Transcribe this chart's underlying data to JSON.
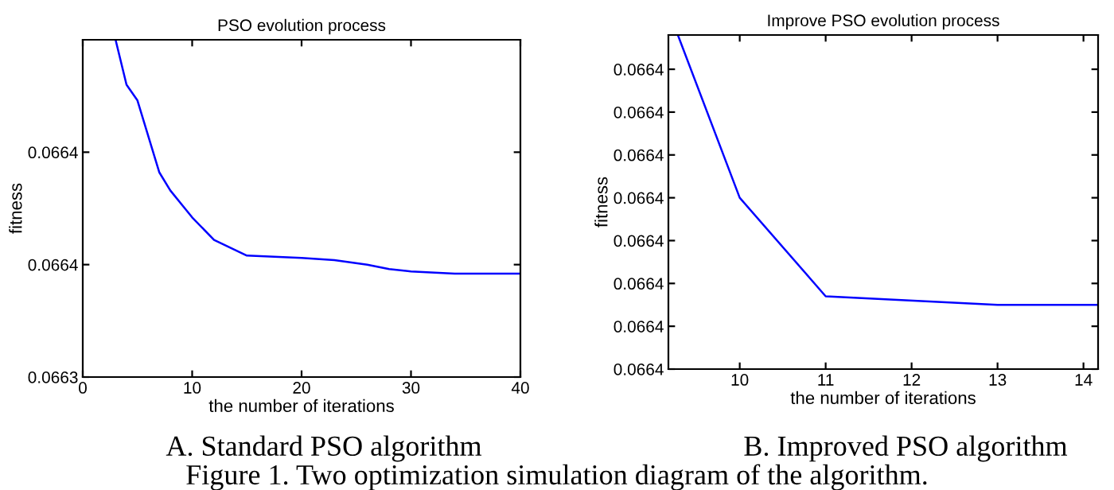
{
  "chart_data": [
    {
      "type": "line",
      "title": "PSO evolution process",
      "xlabel": "the number of iterations",
      "ylabel": "fitness",
      "x": [
        3,
        4,
        5,
        7,
        8,
        10,
        12,
        15,
        20,
        23,
        26,
        28,
        30,
        34,
        40
      ],
      "series": [
        {
          "color": "#0000ff",
          "values": [
            0.06645,
            0.06643,
            0.066423,
            0.066391,
            0.066383,
            0.066371,
            0.066361,
            0.066354,
            0.066353,
            0.066352,
            0.06635,
            0.066348,
            0.066347,
            0.066346,
            0.066346
          ]
        }
      ],
      "xlim": [
        0,
        40
      ],
      "xticks": [
        0,
        10,
        20,
        30,
        40
      ],
      "ylim": [
        0.0663,
        0.06645
      ],
      "yticks": [
        {
          "value": 0.0663,
          "label": "0.0663"
        },
        {
          "value": 0.06635,
          "label": "0.0664"
        },
        {
          "value": 0.0664,
          "label": "0.0664"
        }
      ],
      "grid": false,
      "legend": false,
      "annotations": [
        "A. Standard PSO algorithm",
        "Figure 1. Two optimization simulation diagram of the algorithm."
      ]
    },
    {
      "type": "line",
      "title": "Improve PSO evolution process",
      "xlabel": "the number of iterations",
      "ylabel": "fitness",
      "x": [
        9.28,
        10,
        11,
        13,
        14.17
      ],
      "series": [
        {
          "color": "#0000ff",
          "values": [
            0.066438,
            0.0664,
            0.066377,
            0.066375,
            0.066375
          ]
        }
      ],
      "xlim": [
        9.17,
        14.17
      ],
      "xticks": [
        10,
        11,
        12,
        13,
        14
      ],
      "ylim": [
        0.06636,
        0.066438
      ],
      "yticks": [
        {
          "value": 0.06636,
          "label": "0.0664"
        },
        {
          "value": 0.06637,
          "label": "0.0664"
        },
        {
          "value": 0.06638,
          "label": "0.0664"
        },
        {
          "value": 0.06639,
          "label": "0.0664"
        },
        {
          "value": 0.0664,
          "label": "0.0664"
        },
        {
          "value": 0.06641,
          "label": "0.0664"
        },
        {
          "value": 0.06642,
          "label": "0.0664"
        },
        {
          "value": 0.06643,
          "label": "0.0664"
        }
      ],
      "grid": false,
      "legend": false,
      "annotations": [
        "B. Improved PSO algorithm"
      ]
    }
  ]
}
